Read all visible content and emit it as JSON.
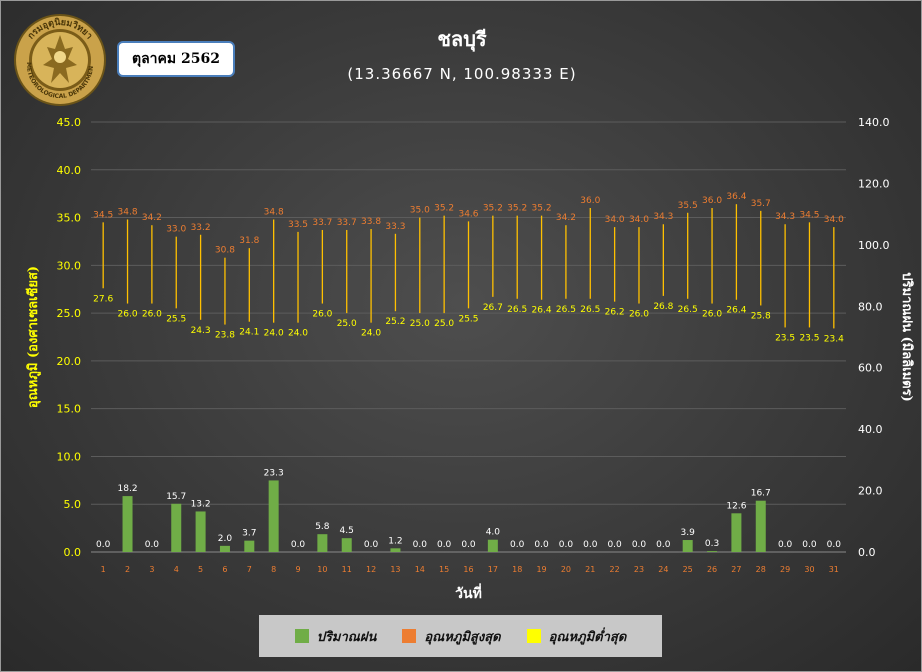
{
  "header": {
    "logo_text_top": "กรมอุตุนิยมวิทยา",
    "logo_text_bottom": "METEOROLOGICAL DEPARTMENT",
    "month_label": "ตุลาคม 2562"
  },
  "colors": {
    "rain": "#70ad47",
    "tmax": "#ed7d31",
    "tmin": "#ffff00",
    "bar_line": "#ffc000",
    "axis_text": "#ffff00"
  },
  "legend": [
    {
      "label": "ปริมาณฝน",
      "color": "#70ad47"
    },
    {
      "label": "อุณหภูมิสูงสุด",
      "color": "#ed7d31"
    },
    {
      "label": "อุณหภูมิต่ำสุด",
      "color": "#ffff00"
    }
  ],
  "chart_data": {
    "type": "bar",
    "title": "ชลบุรี",
    "subtitle": "(13.36667 N, 100.98333 E)",
    "xlabel": "วันที่",
    "ylabel_left": "อุณหภูมิ (องศาเซลเซียส)",
    "ylabel_right": "ปริมาณฝน (มิลลิเมตร)",
    "ylim_left": [
      0,
      45
    ],
    "ylim_right": [
      0,
      140
    ],
    "y_ticks_left": [
      "0.0",
      "5.0",
      "10.0",
      "15.0",
      "20.0",
      "25.0",
      "30.0",
      "35.0",
      "40.0",
      "45.0"
    ],
    "y_ticks_right": [
      "0.0",
      "20.0",
      "40.0",
      "60.0",
      "80.0",
      "100.0",
      "120.0",
      "140.0"
    ],
    "categories": [
      "1",
      "2",
      "3",
      "4",
      "5",
      "6",
      "7",
      "8",
      "9",
      "10",
      "11",
      "12",
      "13",
      "14",
      "15",
      "16",
      "17",
      "18",
      "19",
      "20",
      "21",
      "22",
      "23",
      "24",
      "25",
      "26",
      "27",
      "28",
      "29",
      "30",
      "31"
    ],
    "series": [
      {
        "name": "ปริมาณฝน",
        "axis": "right",
        "values": [
          0.0,
          18.2,
          0.0,
          15.7,
          13.2,
          2.0,
          3.7,
          23.3,
          0.0,
          5.8,
          4.5,
          0.0,
          1.2,
          0.0,
          0.0,
          0.0,
          4.0,
          0.0,
          0.0,
          0.0,
          0.0,
          0.0,
          0.0,
          0.0,
          3.9,
          0.3,
          12.6,
          16.7,
          0.0,
          0.0,
          0.0
        ],
        "labels": [
          "0.0",
          "18.2",
          "0.0",
          "15.7",
          "13.2",
          "2.0",
          "3.7",
          "23.3",
          "0.0",
          "5.8",
          "4.5",
          "0.0",
          "1.2",
          "0.0",
          "0.0",
          "0.0",
          "4.0",
          "0.0",
          "0.0",
          "0.0",
          "0.0",
          "0.0",
          "0.0",
          "0.0",
          "3.9",
          "0.3",
          "12.6",
          "16.7",
          "0.0",
          "0.0",
          "0.0"
        ]
      },
      {
        "name": "อุณหภูมิสูงสุด",
        "axis": "left",
        "values": [
          34.5,
          34.8,
          34.2,
          33.0,
          33.2,
          30.8,
          31.8,
          34.8,
          33.5,
          33.7,
          33.7,
          33.8,
          33.3,
          35.0,
          35.2,
          34.6,
          35.2,
          35.2,
          35.2,
          34.2,
          36.0,
          34.0,
          34.0,
          34.3,
          35.5,
          36.0,
          36.4,
          35.7,
          34.3,
          34.5,
          34.0
        ],
        "labels": [
          "34.5",
          "34.8",
          "34.2",
          "33.0",
          "33.2",
          "30.8",
          "31.8",
          "34.8",
          "33.5",
          "33.7",
          "33.7",
          "33.8",
          "33.3",
          "35.0",
          "35.2",
          "34.6",
          "35.2",
          "35.2",
          "35.2",
          "34.2",
          "36.0",
          "34.0",
          "34.0",
          "34.3",
          "35.5",
          "36.0",
          "36.4",
          "35.7",
          "34.3",
          "34.5",
          "34.0"
        ]
      },
      {
        "name": "อุณหภูมิต่ำสุด",
        "axis": "left",
        "values": [
          27.6,
          26.0,
          26.0,
          25.5,
          24.3,
          23.8,
          24.1,
          24.0,
          24.0,
          26.0,
          25.0,
          24.0,
          25.2,
          25.0,
          25.0,
          25.5,
          26.7,
          26.5,
          26.4,
          26.5,
          26.5,
          26.2,
          26.0,
          26.8,
          26.5,
          26.0,
          26.4,
          25.8,
          23.5,
          23.5,
          23.4
        ],
        "labels": [
          "27.6",
          "26.0",
          "26.0",
          "25.5",
          "24.3",
          "23.8",
          "24.1",
          "24.0",
          "24.0",
          "26.0",
          "25.0",
          "24.0",
          "25.2",
          "25.0",
          "25.0",
          "25.5",
          "26.7",
          "26.5",
          "26.4",
          "26.5",
          "26.5",
          "26.2",
          "26.0",
          "26.8",
          "26.5",
          "26.0",
          "26.4",
          "25.8",
          "23.5",
          "23.5",
          "23.4"
        ]
      }
    ]
  }
}
